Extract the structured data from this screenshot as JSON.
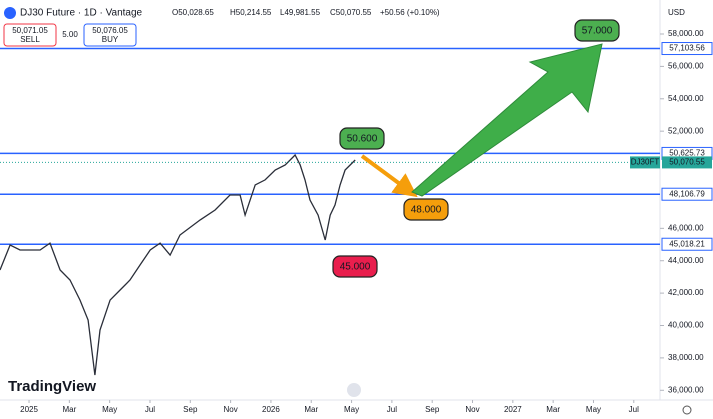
{
  "header": {
    "symbol": "DJ30 Future · 1D · Vantage",
    "open": "O50,028.65",
    "high": "H50,214.55",
    "low": "L49,981.55",
    "close": "C50,070.55",
    "change": "+50.56 (+0.10%)",
    "sell_price": "50,071.05",
    "sell": "SELL",
    "spread": "5.00",
    "buy_price": "50,076.05",
    "buy": "BUY",
    "currency": "USD",
    "brand": "TradingView"
  },
  "chart_data": {
    "type": "line",
    "xlim": [
      -1.44,
      31.3
    ],
    "xticks": [
      {
        "value": 0,
        "label": "2025"
      },
      {
        "value": 2,
        "label": "Mar"
      },
      {
        "value": 4,
        "label": "May"
      },
      {
        "value": 6,
        "label": "Jul"
      },
      {
        "value": 8,
        "label": "Sep"
      },
      {
        "value": 10,
        "label": "Nov"
      },
      {
        "value": 12,
        "label": "2026"
      },
      {
        "value": 14,
        "label": "Mar"
      },
      {
        "value": 16,
        "label": "May"
      },
      {
        "value": 18,
        "label": "Jul"
      },
      {
        "value": 20,
        "label": "Sep"
      },
      {
        "value": 22,
        "label": "Nov"
      },
      {
        "value": 24,
        "label": "2027"
      },
      {
        "value": 26,
        "label": "Mar"
      },
      {
        "value": 28,
        "label": "May"
      },
      {
        "value": 30,
        "label": "Jul"
      }
    ],
    "ylim": [
      35400,
      60100
    ],
    "yticks": [
      {
        "value": 36000,
        "label": "36,000.00"
      },
      {
        "value": 38000,
        "label": "38,000.00"
      },
      {
        "value": 40000,
        "label": "40,000.00"
      },
      {
        "value": 42000,
        "label": "42,000.00"
      },
      {
        "value": 44000,
        "label": "44,000.00"
      },
      {
        "value": 46000,
        "label": "46,000.00"
      },
      {
        "value": 52000,
        "label": "52,000.00"
      },
      {
        "value": 54000,
        "label": "54,000.00"
      },
      {
        "value": 56000,
        "label": "56,000.00"
      },
      {
        "value": 58000,
        "label": "58,000.00"
      }
    ],
    "series": [
      {
        "name": "DJ30FT",
        "color": "#2a2e39",
        "x": [
          -1.44,
          -0.94,
          -0.45,
          0.55,
          1.04,
          1.54,
          2.03,
          2.53,
          2.93,
          3.27,
          3.52,
          4.02,
          4.52,
          5.01,
          5.51,
          6.01,
          6.5,
          7.0,
          7.49,
          8.49,
          9.23,
          9.97,
          10.47,
          10.72,
          11.22,
          11.71,
          12.21,
          12.71,
          13.2,
          13.45,
          13.69,
          13.94,
          14.34,
          14.69,
          14.94,
          15.18,
          15.43,
          15.68,
          16.18
        ],
        "values": [
          43430,
          44970,
          44660,
          44660,
          45090,
          43430,
          42810,
          41570,
          40340,
          36940,
          39720,
          41570,
          42190,
          42810,
          43740,
          44660,
          45090,
          44350,
          45590,
          46520,
          47130,
          48060,
          48060,
          46820,
          48680,
          48990,
          49600,
          49910,
          50530,
          49910,
          48990,
          47750,
          46820,
          45280,
          46820,
          47440,
          48680,
          49600,
          50220
        ]
      }
    ],
    "levels": [
      {
        "value": 57103.56,
        "label": "57,103.56"
      },
      {
        "value": 50625.73,
        "label": "50,625.73"
      },
      {
        "value": 48106.79,
        "label": "48,106.79"
      },
      {
        "value": 45018.21,
        "label": "45,018.21"
      }
    ],
    "level_color": "#2962ff",
    "last_price": {
      "name": "DJ30FT",
      "value": 50070.55,
      "label": "50,070.55",
      "color": "#26a69a"
    },
    "annotations": [
      {
        "text": "57.000",
        "color": "#4caf50"
      },
      {
        "text": "50.600",
        "color": "#4caf50"
      },
      {
        "text": "48.000",
        "color": "#f59e0b"
      },
      {
        "text": "45.000",
        "color": "#e91e4d"
      }
    ]
  }
}
